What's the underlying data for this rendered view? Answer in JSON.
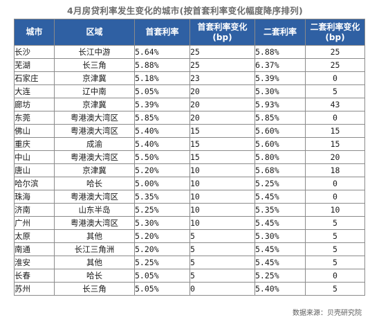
{
  "title": "4月房贷利率发生变化的城市(按首套利率变化幅度降序排列)",
  "columns": [
    "城市",
    "区域",
    "首套利率",
    "首套利率变化\n(bp)",
    "二套利率",
    "二套利率变化\n(bp)"
  ],
  "rows": [
    {
      "city": "长沙",
      "region": "长江中游",
      "first_rate": "5.64%",
      "first_change": "25",
      "second_rate": "5.88%",
      "second_change": "25"
    },
    {
      "city": "芜湖",
      "region": "长三角",
      "first_rate": "5.88%",
      "first_change": "25",
      "second_rate": "6.37%",
      "second_change": "25"
    },
    {
      "city": "石家庄",
      "region": "京津冀",
      "first_rate": "5.18%",
      "first_change": "23",
      "second_rate": "5.39%",
      "second_change": "0"
    },
    {
      "city": "大连",
      "region": "辽中南",
      "first_rate": "5.05%",
      "first_change": "20",
      "second_rate": "5.30%",
      "second_change": "5"
    },
    {
      "city": "廊坊",
      "region": "京津冀",
      "first_rate": "5.39%",
      "first_change": "20",
      "second_rate": "5.93%",
      "second_change": "43"
    },
    {
      "city": "东莞",
      "region": "粤港澳大湾区",
      "first_rate": "5.85%",
      "first_change": "20",
      "second_rate": "5.85%",
      "second_change": "0"
    },
    {
      "city": "佛山",
      "region": "粤港澳大湾区",
      "first_rate": "5.40%",
      "first_change": "15",
      "second_rate": "5.60%",
      "second_change": "15"
    },
    {
      "city": "重庆",
      "region": "成渝",
      "first_rate": "5.40%",
      "first_change": "15",
      "second_rate": "5.60%",
      "second_change": "15"
    },
    {
      "city": "中山",
      "region": "粤港澳大湾区",
      "first_rate": "5.50%",
      "first_change": "15",
      "second_rate": "5.80%",
      "second_change": "20"
    },
    {
      "city": "唐山",
      "region": "京津冀",
      "first_rate": "5.20%",
      "first_change": "10",
      "second_rate": "5.68%",
      "second_change": "18"
    },
    {
      "city": "哈尔滨",
      "region": "哈长",
      "first_rate": "5.00%",
      "first_change": "10",
      "second_rate": "5.25%",
      "second_change": "0"
    },
    {
      "city": "珠海",
      "region": "粤港澳大湾区",
      "first_rate": "5.35%",
      "first_change": "10",
      "second_rate": "5.45%",
      "second_change": "0"
    },
    {
      "city": "济南",
      "region": "山东半岛",
      "first_rate": "5.25%",
      "first_change": "10",
      "second_rate": "5.35%",
      "second_change": "10"
    },
    {
      "city": "广州",
      "region": "粤港澳大湾区",
      "first_rate": "5.30%",
      "first_change": "10",
      "second_rate": "5.45%",
      "second_change": "5"
    },
    {
      "city": "太原",
      "region": "其他",
      "first_rate": "5.20%",
      "first_change": "5",
      "second_rate": "5.30%",
      "second_change": "5"
    },
    {
      "city": "南通",
      "region": "长江三角洲",
      "first_rate": "5.20%",
      "first_change": "5",
      "second_rate": "5.45%",
      "second_change": "5"
    },
    {
      "city": "淮安",
      "region": "其他",
      "first_rate": "5.25%",
      "first_change": "5",
      "second_rate": "5.45%",
      "second_change": "5"
    },
    {
      "city": "长春",
      "region": "哈长",
      "first_rate": "5.05%",
      "first_change": "5",
      "second_rate": "5.25%",
      "second_change": "0"
    },
    {
      "city": "苏州",
      "region": "长三角",
      "first_rate": "5.05%",
      "first_change": "0",
      "second_rate": "5.40%",
      "second_change": "5"
    }
  ],
  "source": "数据来源：贝壳研究院",
  "colors": {
    "header_bg": "#2f60a3",
    "header_text": "#ffffff",
    "border": "#8a8a8a",
    "title_text": "#6b6b6b"
  }
}
